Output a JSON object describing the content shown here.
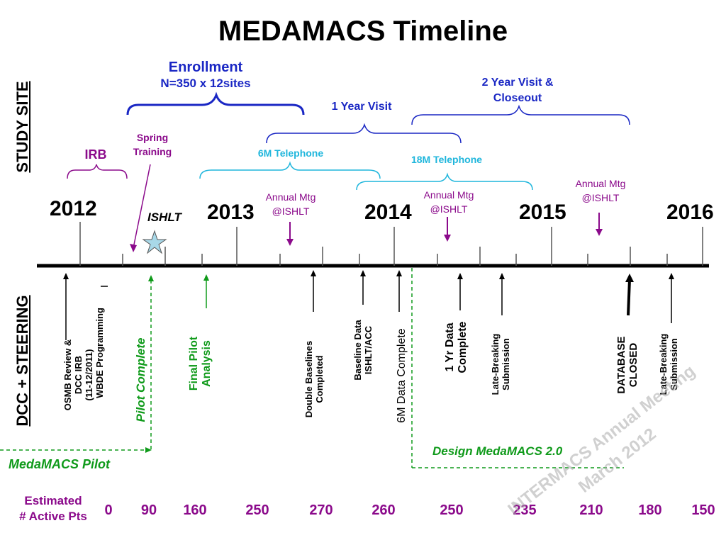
{
  "title": "MEDAMACS Timeline",
  "side_labels": {
    "top": "STUDY SITE",
    "bottom": "DCC + STEERING"
  },
  "years": [
    "2012",
    "2013",
    "2014",
    "2015",
    "2016"
  ],
  "top_labels": {
    "enrollment": "Enrollment",
    "enrollment_n": "N=350 x 12sites",
    "two_year_1": "2 Year Visit &",
    "two_year_2": "Closeout",
    "one_year": "1 Year Visit",
    "spring_1": "Spring",
    "spring_2": "Training",
    "irb": "IRB",
    "six_m": "6M Telephone",
    "eighteen_m": "18M Telephone",
    "annual_1": "Annual Mtg",
    "annual_2": "@ISHLT",
    "ishlt": "ISHLT"
  },
  "bottom_labels": {
    "osmb": "OSMB Review & DCC IRB (11-12/2011)",
    "osmb_l1": "OSMB Review &",
    "osmb_l2": "DCC IRB",
    "osmb_l3": "(11-12/2011)",
    "wbde": "WBDE Programming",
    "pilot_complete": "Pilot Complete",
    "final_pilot_1": "Final Pilot",
    "final_pilot_2": "Analysis",
    "double_1": "Double Baselines",
    "double_2": "Completed",
    "baseline_1": "Baseline Data",
    "baseline_2": "ISHLT/ACC",
    "six_m_data": "6M Data Complete",
    "one_yr_1": "1 Yr Data",
    "one_yr_2": "Complete",
    "late_1": "Late-Breaking",
    "late_2": "Submission",
    "db_1": "DATABASE",
    "db_2": "CLOSED",
    "late2_1": "Late-Breaking",
    "late2_2": "Submission",
    "design": "Design MedaMACS 2.0",
    "pilot": "MedaMACS Pilot"
  },
  "estimated": {
    "label_1": "Estimated",
    "label_2": "# Active Pts",
    "values": [
      "0",
      "90",
      "160",
      "250",
      "270",
      "260",
      "250",
      "235",
      "210",
      "180",
      "150"
    ]
  },
  "watermark": {
    "line1": "INTERMACS Annual Meeting",
    "line2": "March 2012"
  },
  "colors": {
    "blue": "#1a27c4",
    "cyan": "#1fb6dc",
    "purple": "#8b0a8b",
    "green": "#0f9a1a"
  }
}
